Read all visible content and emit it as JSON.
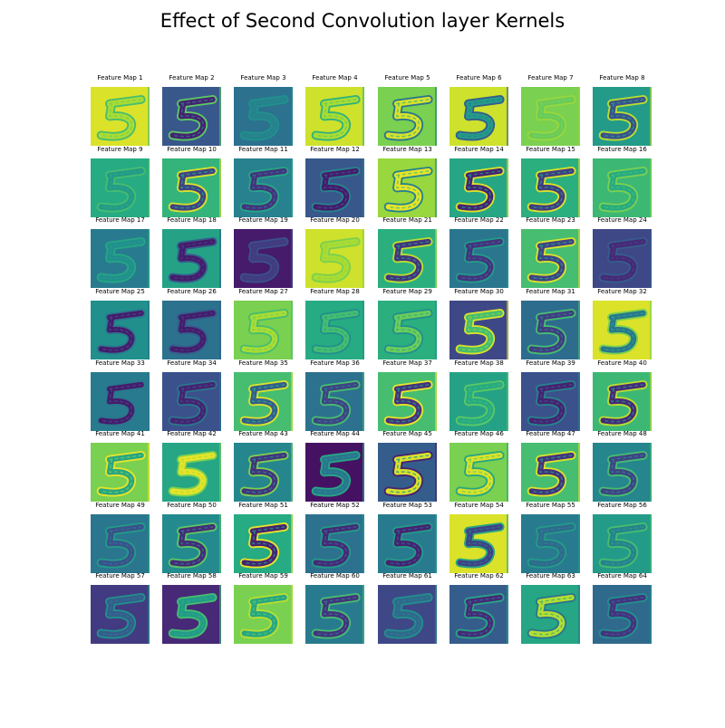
{
  "title": "Effect of Second Convolution layer Kernels",
  "chart_data": {
    "type": "heatmap",
    "title": "Effect of Second Convolution layer Kernels",
    "rows": 8,
    "cols": 8,
    "colormap": "viridis",
    "input_digit": "5",
    "panels": [
      {
        "label": "Feature Map 1",
        "bg": 0.95,
        "fg": 0.88,
        "edge": 0.7
      },
      {
        "label": "Feature Map 2",
        "bg": 0.28,
        "fg": 0.1,
        "edge": 0.75
      },
      {
        "label": "Feature Map 3",
        "bg": 0.38,
        "fg": 0.45,
        "edge": 0.5
      },
      {
        "label": "Feature Map 4",
        "bg": 0.93,
        "fg": 0.88,
        "edge": 0.65
      },
      {
        "label": "Feature Map 5",
        "bg": 0.8,
        "fg": 0.95,
        "edge": 0.4
      },
      {
        "label": "Feature Map 6",
        "bg": 0.93,
        "fg": 0.55,
        "edge": 0.3
      },
      {
        "label": "Feature Map 7",
        "bg": 0.8,
        "fg": 0.77,
        "edge": 0.85
      },
      {
        "label": "Feature Map 8",
        "bg": 0.55,
        "fg": 0.25,
        "edge": 0.9
      },
      {
        "label": "Feature Map 9",
        "bg": 0.62,
        "fg": 0.55,
        "edge": 0.7
      },
      {
        "label": "Feature Map 10",
        "bg": 0.66,
        "fg": 0.2,
        "edge": 0.95
      },
      {
        "label": "Feature Map 11",
        "bg": 0.44,
        "fg": 0.15,
        "edge": 0.6
      },
      {
        "label": "Feature Map 12",
        "bg": 0.28,
        "fg": 0.08,
        "edge": 0.45
      },
      {
        "label": "Feature Map 13",
        "bg": 0.85,
        "fg": 0.97,
        "edge": 0.45
      },
      {
        "label": "Feature Map 14",
        "bg": 0.6,
        "fg": 0.1,
        "edge": 0.95
      },
      {
        "label": "Feature Map 15",
        "bg": 0.64,
        "fg": 0.18,
        "edge": 0.95
      },
      {
        "label": "Feature Map 16",
        "bg": 0.68,
        "fg": 0.62,
        "edge": 0.8
      },
      {
        "label": "Feature Map 17",
        "bg": 0.42,
        "fg": 0.5,
        "edge": 0.6
      },
      {
        "label": "Feature Map 18",
        "bg": 0.58,
        "fg": 0.08,
        "edge": 0.3
      },
      {
        "label": "Feature Map 19",
        "bg": 0.08,
        "fg": 0.18,
        "edge": 0.25
      },
      {
        "label": "Feature Map 20",
        "bg": 0.93,
        "fg": 0.88,
        "edge": 0.8
      },
      {
        "label": "Feature Map 21",
        "bg": 0.64,
        "fg": 0.15,
        "edge": 0.9
      },
      {
        "label": "Feature Map 22",
        "bg": 0.4,
        "fg": 0.15,
        "edge": 0.55
      },
      {
        "label": "Feature Map 23",
        "bg": 0.7,
        "fg": 0.2,
        "edge": 0.95
      },
      {
        "label": "Feature Map 24",
        "bg": 0.22,
        "fg": 0.12,
        "edge": 0.3
      },
      {
        "label": "Feature Map 25",
        "bg": 0.5,
        "fg": 0.08,
        "edge": 0.4
      },
      {
        "label": "Feature Map 26",
        "bg": 0.38,
        "fg": 0.08,
        "edge": 0.3
      },
      {
        "label": "Feature Map 27",
        "bg": 0.8,
        "fg": 0.88,
        "edge": 0.7
      },
      {
        "label": "Feature Map 28",
        "bg": 0.62,
        "fg": 0.7,
        "edge": 0.5
      },
      {
        "label": "Feature Map 29",
        "bg": 0.64,
        "fg": 0.78,
        "edge": 0.5
      },
      {
        "label": "Feature Map 30",
        "bg": 0.22,
        "fg": 0.7,
        "edge": 0.95
      },
      {
        "label": "Feature Map 31",
        "bg": 0.36,
        "fg": 0.18,
        "edge": 0.7
      },
      {
        "label": "Feature Map 32",
        "bg": 0.95,
        "fg": 0.4,
        "edge": 0.8
      },
      {
        "label": "Feature Map 33",
        "bg": 0.42,
        "fg": 0.08,
        "edge": 0.4
      },
      {
        "label": "Feature Map 34",
        "bg": 0.25,
        "fg": 0.1,
        "edge": 0.4
      },
      {
        "label": "Feature Map 35",
        "bg": 0.7,
        "fg": 0.3,
        "edge": 0.95
      },
      {
        "label": "Feature Map 36",
        "bg": 0.38,
        "fg": 0.2,
        "edge": 0.7
      },
      {
        "label": "Feature Map 37",
        "bg": 0.7,
        "fg": 0.15,
        "edge": 0.97
      },
      {
        "label": "Feature Map 38",
        "bg": 0.58,
        "fg": 0.62,
        "edge": 0.75
      },
      {
        "label": "Feature Map 39",
        "bg": 0.25,
        "fg": 0.1,
        "edge": 0.45
      },
      {
        "label": "Feature Map 40",
        "bg": 0.68,
        "fg": 0.12,
        "edge": 0.9
      },
      {
        "label": "Feature Map 41",
        "bg": 0.8,
        "fg": 0.6,
        "edge": 0.97
      },
      {
        "label": "Feature Map 42",
        "bg": 0.6,
        "fg": 0.97,
        "edge": 0.8
      },
      {
        "label": "Feature Map 43",
        "bg": 0.46,
        "fg": 0.15,
        "edge": 0.8
      },
      {
        "label": "Feature Map 44",
        "bg": 0.05,
        "fg": 0.4,
        "edge": 0.6
      },
      {
        "label": "Feature Map 45",
        "bg": 0.3,
        "fg": 0.95,
        "edge": 0.1
      },
      {
        "label": "Feature Map 46",
        "bg": 0.8,
        "fg": 0.95,
        "edge": 0.6
      },
      {
        "label": "Feature Map 47",
        "bg": 0.7,
        "fg": 0.15,
        "edge": 0.95
      },
      {
        "label": "Feature Map 48",
        "bg": 0.46,
        "fg": 0.2,
        "edge": 0.7
      },
      {
        "label": "Feature Map 49",
        "bg": 0.4,
        "fg": 0.25,
        "edge": 0.55
      },
      {
        "label": "Feature Map 50",
        "bg": 0.48,
        "fg": 0.12,
        "edge": 0.75
      },
      {
        "label": "Feature Map 51",
        "bg": 0.62,
        "fg": 0.1,
        "edge": 0.97
      },
      {
        "label": "Feature Map 52",
        "bg": 0.38,
        "fg": 0.12,
        "edge": 0.55
      },
      {
        "label": "Feature Map 53",
        "bg": 0.42,
        "fg": 0.1,
        "edge": 0.55
      },
      {
        "label": "Feature Map 54",
        "bg": 0.95,
        "fg": 0.2,
        "edge": 0.6
      },
      {
        "label": "Feature Map 55",
        "bg": 0.42,
        "fg": 0.35,
        "edge": 0.55
      },
      {
        "label": "Feature Map 56",
        "bg": 0.55,
        "fg": 0.45,
        "edge": 0.7
      },
      {
        "label": "Feature Map 57",
        "bg": 0.18,
        "fg": 0.3,
        "edge": 0.5
      },
      {
        "label": "Feature Map 58",
        "bg": 0.12,
        "fg": 0.55,
        "edge": 0.7
      },
      {
        "label": "Feature Map 59",
        "bg": 0.8,
        "fg": 0.6,
        "edge": 0.9
      },
      {
        "label": "Feature Map 60",
        "bg": 0.42,
        "fg": 0.15,
        "edge": 0.7
      },
      {
        "label": "Feature Map 61",
        "bg": 0.22,
        "fg": 0.35,
        "edge": 0.5
      },
      {
        "label": "Feature Map 62",
        "bg": 0.3,
        "fg": 0.12,
        "edge": 0.6
      },
      {
        "label": "Feature Map 63",
        "bg": 0.6,
        "fg": 0.9,
        "edge": 0.4
      },
      {
        "label": "Feature Map 64",
        "bg": 0.35,
        "fg": 0.15,
        "edge": 0.5
      }
    ]
  }
}
